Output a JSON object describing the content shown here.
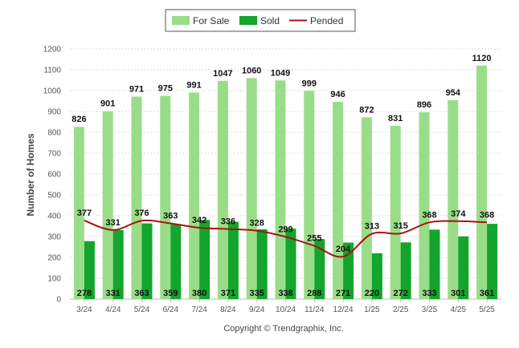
{
  "chart_data": {
    "type": "bar",
    "categories": [
      "3/24",
      "4/24",
      "5/24",
      "6/24",
      "7/24",
      "8/24",
      "9/24",
      "10/24",
      "11/24",
      "12/24",
      "1/25",
      "2/25",
      "3/25",
      "4/25",
      "5/25"
    ],
    "series": [
      {
        "name": "For Sale",
        "type": "bar",
        "color": "#99dd88",
        "values": [
          826,
          901,
          971,
          975,
          991,
          1047,
          1060,
          1049,
          999,
          946,
          872,
          831,
          896,
          954,
          1120
        ]
      },
      {
        "name": "Sold",
        "type": "bar",
        "color": "#13a52c",
        "values": [
          278,
          331,
          363,
          359,
          380,
          371,
          335,
          338,
          288,
          271,
          220,
          272,
          333,
          301,
          361
        ]
      },
      {
        "name": "Pended",
        "type": "line",
        "color": "#aa1111",
        "values": [
          377,
          331,
          376,
          363,
          342,
          336,
          328,
          299,
          255,
          204,
          313,
          315,
          368,
          374,
          368
        ]
      }
    ],
    "ylabel": "Number of Homes",
    "ylim": [
      0,
      1200
    ],
    "yticks": [
      0,
      100,
      200,
      300,
      400,
      500,
      600,
      700,
      800,
      900,
      1000,
      1100,
      1200
    ],
    "grid": true,
    "legend_position": "top-center"
  },
  "copyright": "Copyright © Trendgraphix, Inc."
}
